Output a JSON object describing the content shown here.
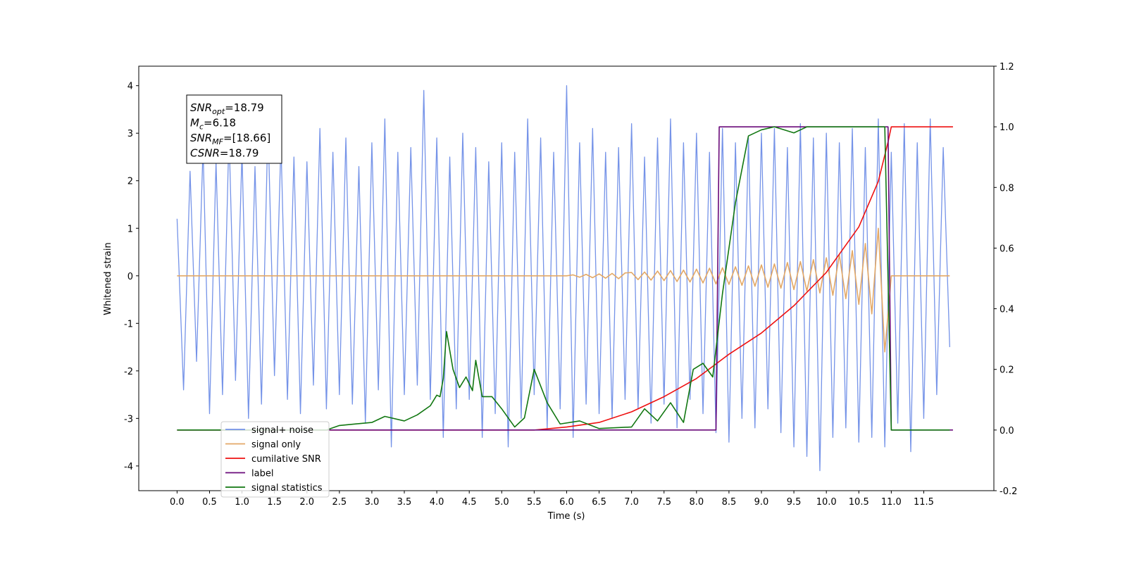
{
  "chart_data": {
    "type": "line",
    "xlabel": "Time (s)",
    "ylabel": "Whitened strain",
    "xlim": [
      -0.59,
      12.58
    ],
    "ylim": [
      -4.52,
      4.41
    ],
    "y2lim": [
      -0.2,
      1.2
    ],
    "xticks": [
      {
        "value": 0,
        "label": "0.0"
      },
      0.5,
      {
        "value": 1,
        "label": "1.0"
      },
      1.5,
      {
        "value": 2,
        "label": "2.0"
      },
      2.5,
      {
        "value": 3,
        "label": "3.0"
      },
      3.5,
      {
        "value": 4,
        "label": "4.0"
      },
      4.5,
      {
        "value": 5,
        "label": "5.0"
      },
      5.5,
      {
        "value": 6,
        "label": "6.0"
      },
      6.5,
      {
        "value": 7,
        "label": "7.0"
      },
      7.5,
      {
        "value": 8,
        "label": "8.0"
      },
      8.5,
      {
        "value": 9,
        "label": "9.0"
      },
      9.5,
      {
        "value": 10,
        "label": "10.0"
      },
      10.5,
      {
        "value": 11,
        "label": "11.0"
      },
      11.5
    ],
    "yticks": [
      -4,
      -3,
      -2,
      -1,
      0,
      1,
      2,
      3,
      4
    ],
    "y2ticks": [
      -0.2,
      {
        "value": 0,
        "label": "0.0"
      },
      0.2,
      0.4,
      0.6,
      0.8,
      {
        "value": 1,
        "label": "1.0"
      },
      1.2
    ],
    "annotations": [
      {
        "symbol": "SNR",
        "sub": "opt",
        "text": "=18.79"
      },
      {
        "symbol": "M",
        "sub": "c",
        "text": "=6.18"
      },
      {
        "symbol": "SNR",
        "sub": "MF",
        "text": "=[18.66]"
      },
      {
        "symbol": "CSNR",
        "text": "=18.79"
      }
    ],
    "legend": "lower left",
    "x": [
      0,
      0.1,
      0.2,
      0.3,
      0.4,
      0.5,
      0.6,
      0.7,
      0.8,
      0.9,
      1,
      1.1,
      1.2,
      1.3,
      1.4,
      1.5,
      1.6,
      1.7,
      1.8,
      1.9,
      2,
      2.1,
      2.2,
      2.3,
      2.4,
      2.5,
      2.6,
      2.7,
      2.8,
      2.9,
      3,
      3.1,
      3.2,
      3.3,
      3.4,
      3.5,
      3.6,
      3.7,
      3.8,
      3.9,
      4,
      4.1,
      4.2,
      4.3,
      4.4,
      4.5,
      4.6,
      4.7,
      4.8,
      4.9,
      5,
      5.1,
      5.2,
      5.3,
      5.4,
      5.5,
      5.6,
      5.7,
      5.8,
      5.9,
      6,
      6.1,
      6.2,
      6.3,
      6.4,
      6.5,
      6.6,
      6.7,
      6.8,
      6.9,
      7,
      7.1,
      7.2,
      7.3,
      7.4,
      7.5,
      7.6,
      7.7,
      7.8,
      7.9,
      8,
      8.1,
      8.2,
      8.3,
      8.4,
      8.5,
      8.6,
      8.7,
      8.8,
      8.9,
      9,
      9.1,
      9.2,
      9.3,
      9.4,
      9.5,
      9.6,
      9.7,
      9.8,
      9.9,
      10,
      10.1,
      10.2,
      10.3,
      10.4,
      10.5,
      10.6,
      10.7,
      10.8,
      10.9,
      11,
      11.1,
      11.2,
      11.3,
      11.4,
      11.5,
      11.6,
      11.7,
      11.8,
      11.9
    ],
    "series": [
      {
        "name": "signal+ noise",
        "color": "#7593e8",
        "values": [
          1.2,
          -2.4,
          2.2,
          -1.8,
          2.7,
          -2.9,
          2.4,
          -2.5,
          3.0,
          -2.2,
          2.6,
          -3.0,
          2.3,
          -2.7,
          3.2,
          -2.1,
          2.8,
          -2.6,
          2.5,
          -2.9,
          2.4,
          -2.3,
          3.1,
          -2.8,
          2.6,
          -2.5,
          2.9,
          -2.7,
          2.3,
          -3.1,
          2.8,
          -2.4,
          3.3,
          -3.6,
          2.6,
          -2.5,
          2.7,
          -2.3,
          3.9,
          -2.6,
          2.9,
          -3.4,
          2.5,
          -2.8,
          3.0,
          -2.6,
          2.7,
          -3.4,
          2.4,
          -2.9,
          2.8,
          -3.6,
          2.6,
          -3.0,
          3.3,
          -2.5,
          2.9,
          -3.2,
          2.6,
          -2.8,
          4.0,
          -3.4,
          2.8,
          -2.7,
          3.1,
          -2.9,
          2.6,
          -3.0,
          2.7,
          -2.6,
          3.2,
          -2.8,
          2.5,
          -3.1,
          2.9,
          -2.7,
          3.3,
          -3.2,
          2.8,
          -2.6,
          3.0,
          -2.9,
          2.6,
          -3.3,
          3.1,
          -3.5,
          2.8,
          -3.0,
          2.9,
          -3.2,
          3.0,
          -2.8,
          3.1,
          -3.3,
          2.7,
          -3.6,
          3.2,
          -3.8,
          2.9,
          -4.1,
          3.0,
          -3.4,
          2.8,
          -3.2,
          3.1,
          -3.5,
          2.7,
          -3.4,
          3.3,
          -3.6,
          2.6,
          -3.1,
          3.2,
          -3.7,
          2.8,
          -3.0,
          3.3,
          -2.5,
          2.7,
          -1.5
        ]
      },
      {
        "name": "signal only",
        "color": "#e3a866",
        "values": [
          0,
          0,
          0,
          0,
          0,
          0,
          0,
          0,
          0,
          0,
          0,
          0,
          0,
          0,
          0,
          0,
          0,
          0,
          0,
          0,
          0,
          0,
          0,
          0,
          0,
          0,
          0,
          0,
          0,
          0,
          0,
          0,
          0,
          0,
          0,
          0,
          0,
          0,
          0,
          0,
          0,
          0,
          0,
          0,
          0,
          0,
          0,
          0,
          0,
          0,
          0,
          0,
          0,
          0,
          0,
          0,
          0,
          0,
          0,
          0,
          0,
          0.02,
          -0.03,
          0.03,
          -0.04,
          0.04,
          -0.05,
          0.05,
          -0.06,
          0.06,
          0.07,
          -0.08,
          0.08,
          -0.09,
          0.1,
          -0.1,
          0.11,
          -0.12,
          0.12,
          -0.13,
          0.14,
          -0.15,
          0.16,
          -0.17,
          0.17,
          -0.18,
          0.19,
          -0.2,
          0.21,
          -0.22,
          0.23,
          -0.24,
          0.25,
          -0.26,
          0.28,
          -0.29,
          0.3,
          -0.32,
          0.34,
          -0.36,
          0.38,
          -0.41,
          0.44,
          -0.48,
          0.53,
          -0.6,
          0.68,
          -0.8,
          1.0,
          -1.6,
          0,
          0,
          0,
          0,
          0,
          0,
          0,
          0,
          0,
          0
        ]
      },
      {
        "name": "cumilative SNR",
        "color": "#ee1111",
        "axis": "y2",
        "x": [
          0,
          5.5,
          6.0,
          6.5,
          7.0,
          7.5,
          8.0,
          8.5,
          9.0,
          9.5,
          10.0,
          10.5,
          10.8,
          10.95,
          11.0,
          11.95
        ],
        "values": [
          0,
          0,
          0.01,
          0.025,
          0.06,
          0.11,
          0.17,
          0.25,
          0.32,
          0.41,
          0.52,
          0.67,
          0.82,
          0.95,
          1.0,
          1.0
        ]
      },
      {
        "name": "label",
        "color": "#6a0a7a",
        "axis": "y2",
        "x": [
          0,
          8.3,
          8.35,
          10.95,
          11.0,
          11.95
        ],
        "values": [
          0,
          0,
          1,
          1,
          0,
          0
        ]
      },
      {
        "name": "signal statistics",
        "color": "#117711",
        "axis": "y2",
        "x": [
          0,
          2.3,
          2.5,
          3.0,
          3.2,
          3.5,
          3.7,
          3.9,
          4.0,
          4.05,
          4.1,
          4.15,
          4.25,
          4.35,
          4.45,
          4.55,
          4.6,
          4.7,
          4.85,
          5.0,
          5.2,
          5.35,
          5.5,
          5.7,
          5.9,
          6.2,
          6.5,
          7.0,
          7.2,
          7.4,
          7.6,
          7.8,
          7.95,
          8.1,
          8.25,
          8.4,
          8.6,
          8.8,
          9.0,
          9.2,
          9.5,
          9.7,
          10.9,
          11.0,
          11.9
        ],
        "values": [
          0,
          0,
          0.015,
          0.025,
          0.045,
          0.03,
          0.05,
          0.08,
          0.115,
          0.11,
          0.17,
          0.325,
          0.2,
          0.14,
          0.175,
          0.13,
          0.23,
          0.11,
          0.11,
          0.07,
          0.01,
          0.04,
          0.2,
          0.09,
          0.02,
          0.03,
          0.005,
          0.01,
          0.07,
          0.03,
          0.09,
          0.025,
          0.2,
          0.22,
          0.175,
          0.45,
          0.75,
          0.97,
          0.99,
          1.0,
          0.98,
          1.0,
          1.0,
          0,
          0
        ]
      }
    ]
  }
}
